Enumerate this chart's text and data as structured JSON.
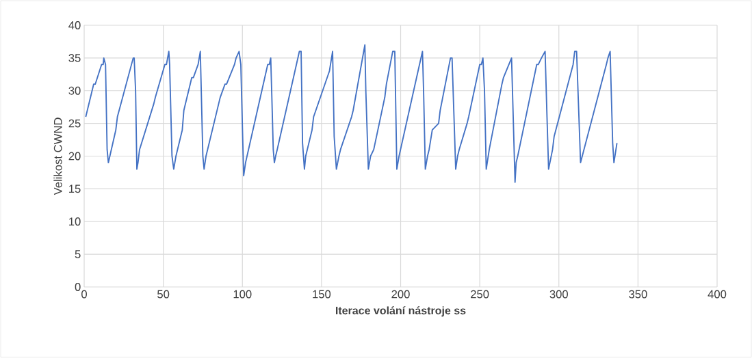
{
  "chart_data": {
    "type": "line",
    "xlabel": "Iterace volání nástroje ss",
    "ylabel": "Velikost CWND",
    "xlim": [
      0,
      400
    ],
    "xticks": [
      0,
      50,
      100,
      150,
      200,
      250,
      300,
      350,
      400
    ],
    "ylim": [
      0,
      40
    ],
    "yticks": [
      0,
      5,
      10,
      15,
      20,
      25,
      30,
      35,
      40
    ],
    "grid": true,
    "series": [
      {
        "color": "#4472c4",
        "x": [
          1,
          6,
          7,
          11,
          12,
          12.4,
          13.5,
          14.5,
          15.3,
          20,
          21,
          31,
          31.6,
          32.5,
          33.3,
          34,
          35,
          44,
          45,
          51,
          52,
          53.5,
          54,
          55.5,
          56.6,
          58,
          62,
          63,
          65,
          67,
          68,
          69,
          72,
          73.4,
          75,
          75.8,
          77,
          85,
          86,
          89,
          90,
          95,
          96,
          97.9,
          99,
          100.8,
          102,
          116,
          117,
          117.9,
          118.5,
          119.5,
          120.2,
          121,
          122,
          136,
          137.1,
          138,
          139.2,
          140,
          141,
          144,
          145,
          155,
          157,
          158,
          159.4,
          161,
          162,
          169,
          170,
          177.4,
          178,
          179.6,
          181,
          183,
          190,
          191,
          195,
          196.3,
          197.6,
          199,
          211,
          213.8,
          214.5,
          215.6,
          217,
          218,
          220,
          224,
          225,
          231.5,
          232.5,
          234.8,
          236,
          237,
          242,
          243,
          250,
          251,
          252,
          253,
          254.1,
          256,
          264,
          265,
          270.1,
          272.3,
          273,
          274,
          286,
          287,
          289,
          291.3,
          292.5,
          293.5,
          296,
          297,
          309,
          310,
          311.2,
          313.7,
          330,
          331,
          332.4,
          334,
          334.8,
          336.7
        ],
        "values": [
          26,
          31,
          31,
          34,
          34,
          35,
          34,
          21,
          19,
          24,
          26,
          35,
          35,
          30,
          18,
          19,
          21,
          28,
          29,
          34,
          34,
          36,
          34,
          20,
          18,
          20,
          24,
          27,
          29,
          31,
          32,
          32,
          34,
          36,
          20,
          18,
          20,
          28,
          29,
          31,
          31,
          34,
          35,
          36,
          34,
          17,
          19,
          34,
          34,
          35,
          30,
          21,
          19,
          20,
          21,
          36,
          36,
          22,
          18,
          20,
          21,
          24,
          26,
          33,
          36,
          23,
          18,
          20,
          21,
          26,
          27,
          37,
          30,
          18,
          20,
          21,
          29,
          31,
          36,
          36,
          18,
          20,
          33,
          36,
          30,
          18,
          20,
          21,
          24,
          25,
          27,
          35,
          35,
          18,
          20,
          21,
          25,
          26,
          34,
          34,
          35,
          30,
          18,
          21,
          31,
          32,
          35,
          16,
          19,
          20,
          34,
          34,
          35,
          36,
          26,
          18,
          21,
          23,
          34,
          36,
          36,
          19,
          34,
          35,
          36,
          22,
          19,
          22
        ]
      }
    ]
  }
}
